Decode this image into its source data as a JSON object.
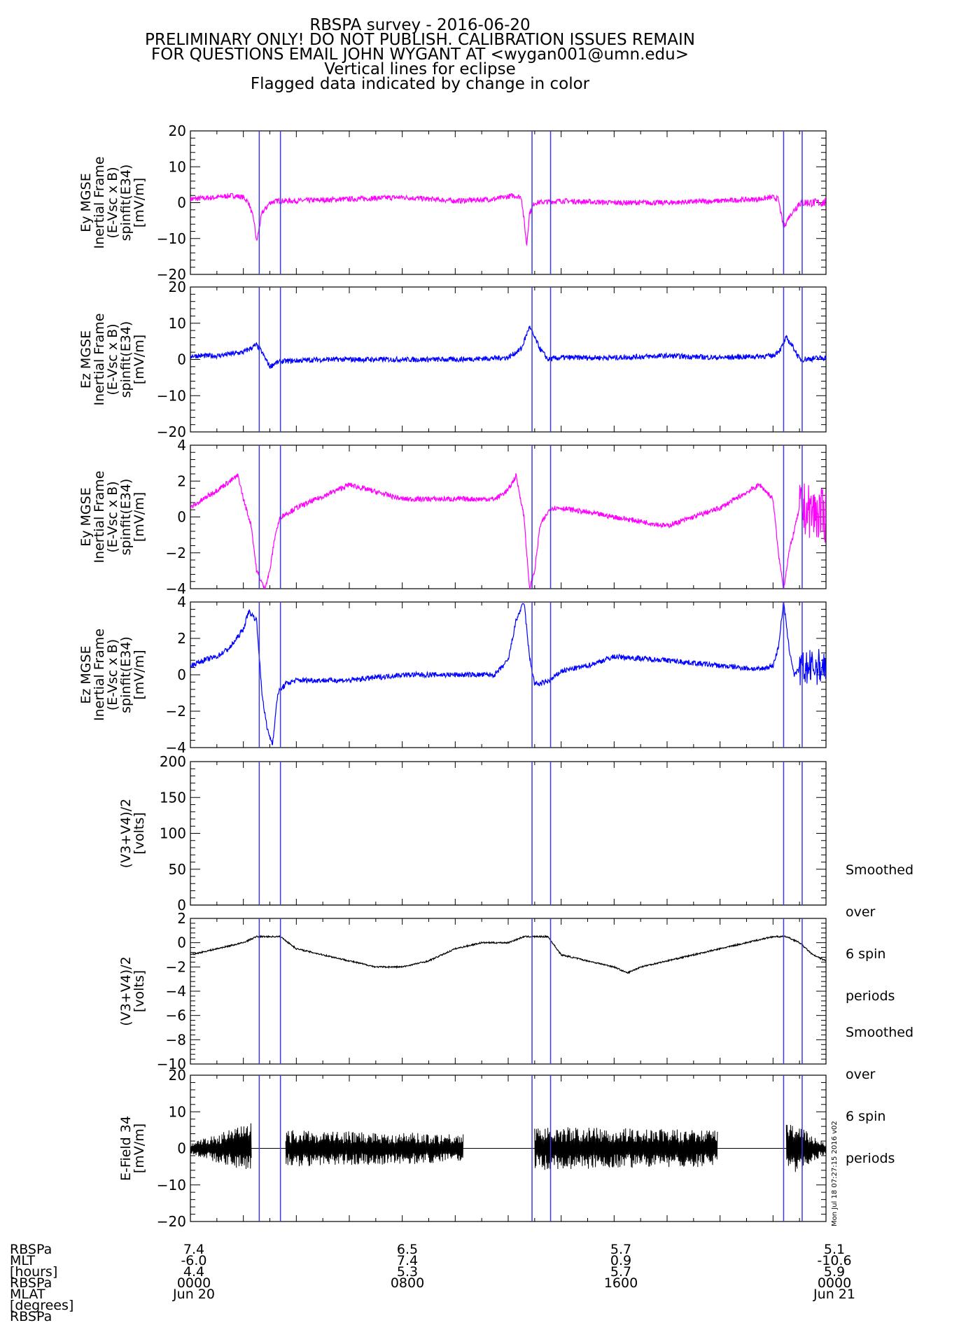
{
  "title_lines": [
    "RBSPA survey - 2016-06-20",
    "PRELIMINARY ONLY! DO NOT PUBLISH. CALIBRATION ISSUES REMAIN",
    "FOR QUESTIONS EMAIL JOHN WYGANT AT <wygan001@umn.edu>",
    "Vertical lines for eclipse",
    "Flagged data indicated by change in color"
  ],
  "timestamp": "Mon Jul 18 07:27:15 2016 v02",
  "side_notes": {
    "panel5": [
      "Smoothed",
      "over",
      "6 spin",
      "periods"
    ],
    "panel6": [
      "Smoothed",
      "over",
      "6 spin",
      "periods"
    ]
  },
  "eclipse_line_color": "#3a3ae0",
  "eclipse_hours": [
    2.6,
    3.4,
    12.9,
    13.6,
    22.4,
    23.1
  ],
  "ephemeris": {
    "row_labels": [
      "RBSPa",
      "MLT",
      "[hours]",
      "RBSPa",
      "MLAT",
      "[degrees]",
      "RBSPa"
    ],
    "columns": [
      {
        "hour": 0,
        "lines": [
          "7.4",
          "-6.0",
          "4.4",
          "0000",
          "Jun 20"
        ]
      },
      {
        "hour": 8,
        "lines": [
          "6.5",
          "7.4",
          "5.3",
          "0800",
          ""
        ]
      },
      {
        "hour": 16,
        "lines": [
          "5.7",
          "0.9",
          "5.7",
          "1600",
          ""
        ]
      },
      {
        "hour": 24,
        "lines": [
          "5.1",
          "-10.6",
          "5.9",
          "0000",
          "Jun 21"
        ]
      }
    ]
  },
  "chart_data": [
    {
      "type": "line",
      "ylabel": [
        "Ey MGSE",
        "Inertial Frame",
        "(E-Vsc x B)",
        "spinfit(E34)",
        "[mV/m]"
      ],
      "ylim": [
        -20,
        20
      ],
      "yticks": [
        20,
        10,
        0,
        -10,
        -20
      ],
      "color": "#ff00ff",
      "series": [
        {
          "x": [
            0,
            1,
            1.6,
            2,
            2.2,
            2.4,
            2.5,
            2.7,
            3,
            3.3,
            4,
            6,
            8,
            10,
            11.5,
            12.2,
            12.5,
            12.6,
            12.7,
            12.8,
            13,
            14,
            16,
            18,
            20,
            21.5,
            22,
            22.2,
            22.4,
            22.6,
            23,
            24
          ],
          "y": [
            1,
            1.5,
            2,
            1.5,
            0,
            -5,
            -11,
            -3,
            0,
            0.5,
            0.5,
            1,
            1.5,
            0.5,
            1,
            2,
            1.5,
            -5,
            -12,
            -3,
            0,
            0.5,
            0,
            0,
            0.5,
            1,
            1.5,
            1,
            -7,
            -4,
            0,
            0
          ]
        }
      ],
      "noise": {
        "from": 22.8,
        "to": 24,
        "amp": 1.2
      }
    },
    {
      "type": "line",
      "ylabel": [
        "Ez MGSE",
        "Inertial Frame",
        "(E-Vsc x B)",
        "spinfit(E34)",
        "[mV/m]"
      ],
      "ylim": [
        -20,
        20
      ],
      "yticks": [
        20,
        10,
        0,
        -10,
        -20
      ],
      "color": "#0000ff",
      "series": [
        {
          "x": [
            0,
            1,
            2,
            2.5,
            2.7,
            3,
            3.2,
            3.5,
            5,
            8,
            10,
            12,
            12.5,
            12.8,
            13.2,
            13.5,
            14,
            16,
            18,
            20,
            22,
            22.3,
            22.5,
            22.8,
            23,
            24
          ],
          "y": [
            1,
            1,
            2,
            4,
            2,
            -2,
            -1,
            -0.5,
            0,
            0,
            0,
            0.5,
            3,
            9,
            3,
            0,
            0.5,
            0.5,
            1,
            0.5,
            1,
            3,
            6,
            3,
            0,
            0.5
          ]
        }
      ],
      "noise": {
        "from": 22.8,
        "to": 24,
        "amp": 0.8
      }
    },
    {
      "type": "line",
      "ylabel": [
        "Ey MGSE",
        "Inertial Frame",
        "(E-Vsc x B)",
        "spinfit(E34)",
        "[mV/m]"
      ],
      "ylim": [
        -4,
        4
      ],
      "yticks": [
        4,
        2,
        0,
        -2,
        -4
      ],
      "color": "#ff00ff",
      "series": [
        {
          "x": [
            0,
            0.5,
            1,
            1.5,
            1.8,
            2,
            2.3,
            2.5,
            2.8,
            3,
            3.2,
            3.4,
            4,
            6,
            8,
            10,
            11.5,
            12,
            12.3,
            12.6,
            12.8,
            13,
            13.2,
            13.6,
            14,
            16,
            18,
            20,
            21.5,
            22,
            22.2,
            22.4,
            22.6,
            23,
            24
          ],
          "y": [
            0.5,
            1,
            1.5,
            2,
            2.3,
            1,
            -0.5,
            -3,
            -4,
            -3,
            -1,
            0,
            0.5,
            1.8,
            1,
            1,
            1,
            1.5,
            2.3,
            0,
            -4,
            -3,
            -0.5,
            0.5,
            0.5,
            0,
            -0.5,
            0.5,
            1.8,
            1,
            -2,
            -4,
            -2,
            0.5,
            0
          ]
        }
      ],
      "noise": {
        "from": 23,
        "to": 24,
        "amp": 1.5
      }
    },
    {
      "type": "line",
      "ylabel": [
        "Ez MGSE",
        "Inertial Frame",
        "(E-Vsc x B)",
        "spinfit(E34)",
        "[mV/m]"
      ],
      "ylim": [
        -4,
        4
      ],
      "yticks": [
        4,
        2,
        0,
        -2,
        -4
      ],
      "color": "#0000ff",
      "series": [
        {
          "x": [
            0,
            0.5,
            1,
            1.5,
            2,
            2.2,
            2.5,
            2.7,
            2.9,
            3.1,
            3.3,
            3.6,
            4,
            6,
            8,
            10,
            11.5,
            12,
            12.3,
            12.6,
            12.8,
            13,
            13.2,
            13.6,
            14,
            15,
            16,
            18,
            20,
            21.5,
            22,
            22.2,
            22.4,
            22.6,
            22.8,
            23,
            24
          ],
          "y": [
            0.5,
            0.8,
            1,
            1.5,
            2.5,
            3.5,
            3,
            -1,
            -3,
            -3.8,
            -1,
            -0.5,
            -0.3,
            -0.3,
            0,
            0,
            0,
            0.8,
            3,
            4,
            1,
            -0.5,
            -0.5,
            -0.3,
            0.2,
            0.5,
            1,
            0.8,
            0.5,
            0.3,
            0.5,
            1.5,
            4,
            1.5,
            0,
            0.3,
            0.5
          ]
        }
      ],
      "noise": {
        "from": 23,
        "to": 24,
        "amp": 1
      }
    },
    {
      "type": "line",
      "ylabel": [
        "(V3+V4)/2",
        "[volts]"
      ],
      "ylim": [
        0,
        200
      ],
      "yticks": [
        200,
        150,
        100,
        50,
        0
      ],
      "color": "#000000",
      "series": [
        {
          "x": [
            0,
            6,
            12,
            18,
            24
          ],
          "y": [
            0,
            0,
            0,
            0,
            0
          ]
        }
      ]
    },
    {
      "type": "line",
      "ylabel": [
        "(V3+V4)/2",
        "[volts]"
      ],
      "ylim": [
        -10,
        2
      ],
      "yticks": [
        2,
        0,
        -2,
        -4,
        -6,
        -8,
        -10
      ],
      "color": "#000000",
      "series": [
        {
          "x": [
            0,
            1,
            2,
            2.5,
            3,
            3.4,
            4,
            5,
            6,
            7,
            8,
            9,
            10,
            11,
            12,
            12.6,
            13,
            13.5,
            14,
            15,
            16,
            16.5,
            17,
            18,
            19,
            20,
            21,
            22,
            22.5,
            23,
            23.5,
            24
          ],
          "y": [
            -1,
            -0.5,
            0,
            0.5,
            0.5,
            0.5,
            -0.5,
            -1,
            -1.5,
            -2,
            -2,
            -1.5,
            -0.5,
            0,
            0,
            0.5,
            0.5,
            0.5,
            -1,
            -1.5,
            -2,
            -2.5,
            -2,
            -1.5,
            -1,
            -0.5,
            0,
            0.5,
            0.5,
            0,
            -1,
            -1.5
          ]
        }
      ]
    },
    {
      "type": "line",
      "ylabel": [
        "E-Field 34",
        "[mV/m]"
      ],
      "ylim": [
        -20,
        20
      ],
      "yticks": [
        20,
        10,
        0,
        -10,
        -20
      ],
      "color": "#000000",
      "series": [
        {
          "x": [
            0,
            24
          ],
          "y": [
            0,
            0
          ]
        }
      ],
      "envelope": [
        {
          "from": 0,
          "to": 2.3,
          "amp0": 1.5,
          "amp1": 7
        },
        {
          "from": 3.6,
          "to": 10.3,
          "amp0": 5,
          "amp1": 4
        },
        {
          "from": 13,
          "to": 19.9,
          "amp0": 6,
          "amp1": 5
        },
        {
          "from": 22.5,
          "to": 24,
          "amp0": 8,
          "amp1": 1.5
        }
      ]
    }
  ]
}
